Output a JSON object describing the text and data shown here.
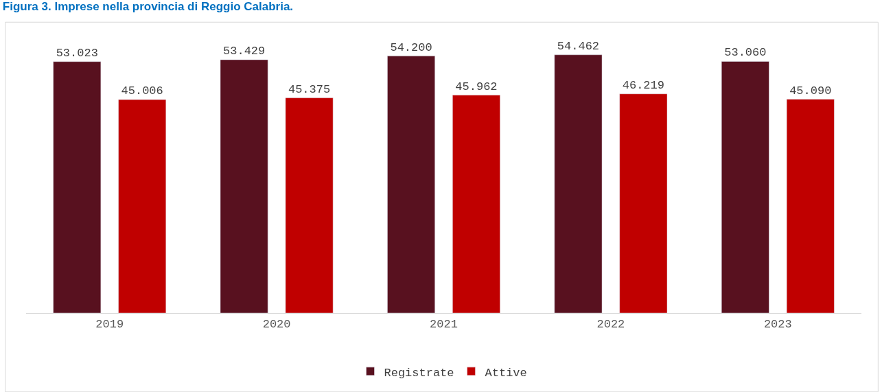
{
  "chart_data": {
    "type": "bar",
    "title": "Figura 3. Imprese nella provincia di Reggio Calabria.",
    "categories": [
      "2019",
      "2020",
      "2021",
      "2022",
      "2023"
    ],
    "series": [
      {
        "name": "Registrate",
        "color": "#58111f",
        "values": [
          53023,
          53429,
          54200,
          54462,
          53060
        ],
        "value_labels": [
          "53.023",
          "53.429",
          "54.200",
          "54.462",
          "53.060"
        ]
      },
      {
        "name": "Attive",
        "color": "#c00000",
        "values": [
          45006,
          45375,
          45962,
          46219,
          45090
        ],
        "value_labels": [
          "45.006",
          "45.375",
          "45.962",
          "46.219",
          "45.090"
        ]
      }
    ],
    "tick_labels": "x",
    "legend": "bottom"
  }
}
